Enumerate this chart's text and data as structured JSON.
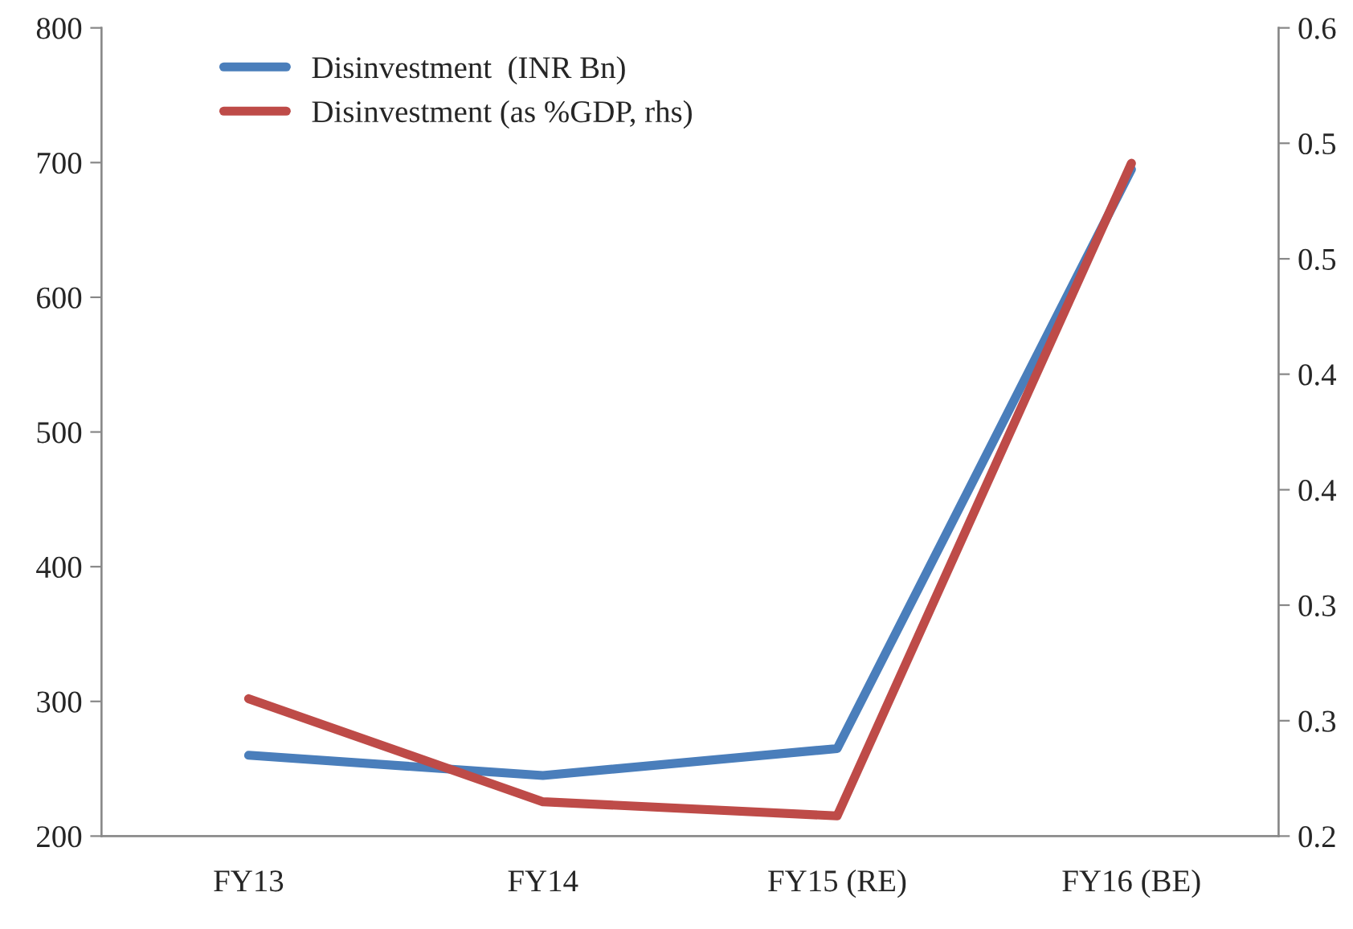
{
  "chart_data": {
    "type": "line",
    "categories": [
      "FY13",
      "FY14",
      "FY15 (RE)",
      "FY16 (BE)"
    ],
    "series": [
      {
        "name": "Disinvestment  (INR Bn)",
        "color": "#4a7ebb",
        "values": [
          260,
          245,
          265,
          695
        ]
      },
      {
        "name": "Disinvestment (as %GDP, rhs)",
        "color": "#be4b48",
        "values": [
          0.268,
          0.217,
          0.21,
          0.533
        ],
        "axis": "y2"
      }
    ],
    "ylim": [
      200,
      800
    ],
    "yticks": [
      200,
      300,
      400,
      500,
      600,
      700,
      800
    ],
    "y2lim": [
      0.2,
      0.6
    ],
    "y2ticks": [
      {
        "value": 0.2,
        "label": "0.2"
      },
      {
        "value": 0.2571,
        "label": "0.3"
      },
      {
        "value": 0.3143,
        "label": "0.3"
      },
      {
        "value": 0.3714,
        "label": "0.4"
      },
      {
        "value": 0.4286,
        "label": "0.4"
      },
      {
        "value": 0.4857,
        "label": "0.5"
      },
      {
        "value": 0.5429,
        "label": "0.5"
      },
      {
        "value": 0.6,
        "label": "0.6"
      }
    ],
    "legend": "top left",
    "grid": false,
    "line_style": "solid"
  }
}
